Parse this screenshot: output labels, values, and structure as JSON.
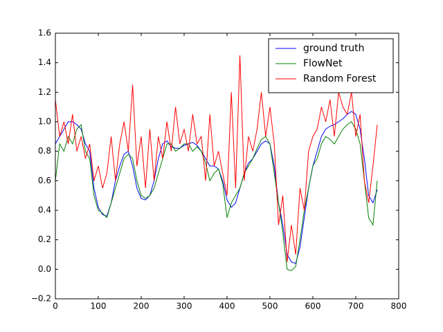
{
  "chart_data": {
    "type": "line",
    "x": [
      0,
      10,
      20,
      30,
      40,
      50,
      60,
      70,
      80,
      90,
      100,
      110,
      120,
      130,
      140,
      150,
      160,
      170,
      180,
      190,
      200,
      210,
      220,
      230,
      240,
      250,
      260,
      270,
      280,
      290,
      300,
      310,
      320,
      330,
      340,
      350,
      360,
      370,
      380,
      390,
      400,
      410,
      420,
      430,
      440,
      450,
      460,
      470,
      480,
      490,
      500,
      510,
      520,
      530,
      540,
      550,
      560,
      570,
      580,
      590,
      600,
      610,
      620,
      630,
      640,
      650,
      660,
      670,
      680,
      690,
      700,
      710,
      720,
      730,
      740,
      750
    ],
    "series": [
      {
        "name": "ground truth",
        "color": "#0000ff",
        "values": [
          0.85,
          0.9,
          0.95,
          1.0,
          1.0,
          0.98,
          0.95,
          0.85,
          0.8,
          0.55,
          0.42,
          0.37,
          0.36,
          0.45,
          0.6,
          0.7,
          0.78,
          0.8,
          0.7,
          0.55,
          0.48,
          0.47,
          0.5,
          0.6,
          0.75,
          0.85,
          0.87,
          0.83,
          0.82,
          0.82,
          0.84,
          0.85,
          0.86,
          0.84,
          0.8,
          0.75,
          0.7,
          0.7,
          0.68,
          0.6,
          0.47,
          0.42,
          0.45,
          0.55,
          0.65,
          0.72,
          0.75,
          0.8,
          0.85,
          0.87,
          0.85,
          0.7,
          0.45,
          0.3,
          0.1,
          0.05,
          0.04,
          0.15,
          0.35,
          0.55,
          0.7,
          0.8,
          0.9,
          0.95,
          0.97,
          0.98,
          1.0,
          1.02,
          1.05,
          1.07,
          1.05,
          0.95,
          0.75,
          0.5,
          0.45,
          0.54
        ]
      },
      {
        "name": "FlowNet",
        "color": "#008000",
        "values": [
          0.6,
          0.85,
          0.8,
          0.9,
          0.85,
          0.95,
          0.98,
          0.8,
          0.75,
          0.5,
          0.4,
          0.38,
          0.35,
          0.45,
          0.55,
          0.65,
          0.75,
          0.78,
          0.75,
          0.6,
          0.5,
          0.48,
          0.5,
          0.55,
          0.65,
          0.75,
          0.85,
          0.85,
          0.8,
          0.82,
          0.85,
          0.85,
          0.8,
          0.83,
          0.8,
          0.72,
          0.6,
          0.65,
          0.68,
          0.58,
          0.35,
          0.45,
          0.5,
          0.55,
          0.65,
          0.7,
          0.75,
          0.82,
          0.88,
          0.9,
          0.85,
          0.65,
          0.45,
          0.25,
          0.0,
          -0.01,
          0.02,
          0.2,
          0.4,
          0.55,
          0.7,
          0.75,
          0.85,
          0.9,
          0.88,
          0.85,
          0.9,
          0.95,
          0.98,
          1.0,
          0.95,
          0.85,
          0.6,
          0.35,
          0.3,
          0.6
        ]
      },
      {
        "name": "Random Forest",
        "color": "#ff0000",
        "values": [
          1.15,
          0.9,
          1.0,
          0.85,
          1.05,
          0.8,
          0.9,
          0.75,
          0.85,
          0.6,
          0.7,
          0.55,
          0.65,
          0.9,
          0.6,
          0.85,
          1.0,
          0.8,
          1.25,
          0.7,
          0.9,
          0.55,
          0.95,
          0.6,
          0.9,
          0.75,
          1.0,
          0.8,
          1.1,
          0.85,
          0.95,
          0.8,
          1.05,
          0.85,
          0.9,
          0.6,
          1.05,
          0.7,
          0.8,
          0.65,
          0.5,
          1.2,
          0.55,
          1.45,
          0.6,
          0.9,
          0.8,
          0.95,
          1.2,
          0.9,
          1.1,
          0.85,
          0.3,
          0.5,
          0.05,
          0.3,
          0.1,
          0.55,
          0.4,
          0.8,
          0.9,
          0.95,
          1.1,
          1.0,
          1.15,
          0.9,
          1.2,
          1.1,
          1.05,
          1.2,
          0.9,
          1.05,
          0.6,
          0.45,
          0.7,
          0.98
        ]
      }
    ],
    "xlim": [
      0,
      800
    ],
    "xticks": [
      0,
      100,
      200,
      300,
      400,
      500,
      600,
      700,
      800
    ],
    "ylim": [
      -0.2,
      1.6
    ],
    "yticks": [
      {
        "value": -0.2,
        "label": "−0.2"
      },
      {
        "value": 0,
        "label": "0.0"
      },
      0.2,
      0.4,
      0.6,
      0.8,
      {
        "value": 1,
        "label": "1.0"
      },
      1.2,
      1.4,
      1.6
    ],
    "legend": "upper right"
  }
}
